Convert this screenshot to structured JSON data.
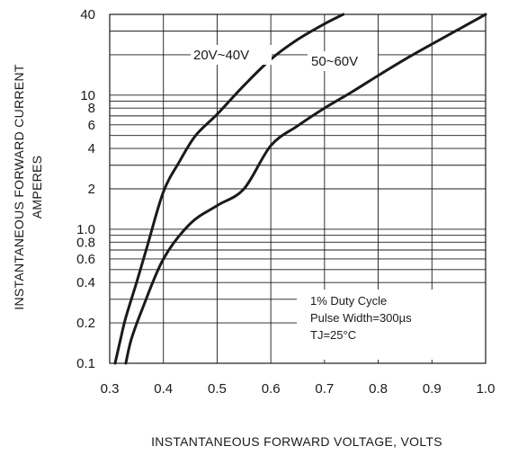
{
  "chart_data": {
    "type": "line",
    "xlabel": "INSTANTANEOUS FORWARD VOLTAGE, VOLTS",
    "ylabel_line1": "INSTANTANEOUS FORWARD CURRENT",
    "ylabel_line2": "AMPERES",
    "xlim": [
      0.3,
      1.0
    ],
    "ylim": [
      0.1,
      40
    ],
    "y_scale": "log",
    "grid": true,
    "x_ticks": [
      0.3,
      0.4,
      0.5,
      0.6,
      0.7,
      0.8,
      0.9,
      1.0
    ],
    "x_tick_labels": [
      "0.3",
      "0.4",
      "0.5",
      "0.6",
      "0.7",
      "0.8",
      "0.9",
      "1.0"
    ],
    "y_ticks": [
      0.1,
      0.2,
      0.4,
      0.6,
      0.8,
      1.0,
      2,
      4,
      6,
      8,
      10,
      40
    ],
    "y_tick_labels": [
      "0.1",
      "0.2",
      "0.4",
      "0.6",
      "0.8",
      "1.0",
      "2",
      "4",
      "6",
      "8",
      "10",
      "40"
    ],
    "y_gridlines": [
      0.1,
      0.2,
      0.3,
      0.4,
      0.5,
      0.6,
      0.7,
      0.8,
      0.9,
      1,
      2,
      3,
      4,
      5,
      6,
      7,
      8,
      9,
      10,
      20,
      30,
      40
    ],
    "series": [
      {
        "name": "20V~40V",
        "x": [
          0.31,
          0.32,
          0.33,
          0.35,
          0.37,
          0.4,
          0.43,
          0.46,
          0.5,
          0.55,
          0.6,
          0.65,
          0.7,
          0.735
        ],
        "y": [
          0.1,
          0.15,
          0.22,
          0.4,
          0.75,
          1.9,
          3.2,
          5.0,
          7.2,
          11.8,
          18.5,
          26.0,
          34.0,
          40.0
        ]
      },
      {
        "name": "50~60V",
        "x": [
          0.33,
          0.34,
          0.36,
          0.4,
          0.45,
          0.5,
          0.55,
          0.6,
          0.65,
          0.7,
          0.75,
          0.8,
          0.85,
          0.9,
          0.95,
          1.0
        ],
        "y": [
          0.1,
          0.15,
          0.25,
          0.6,
          1.1,
          1.5,
          2.0,
          4.2,
          5.9,
          8.0,
          10.5,
          14.0,
          18.5,
          24.0,
          31.0,
          40.0
        ]
      }
    ],
    "series_labels": [
      "20V~40V",
      "50~60V"
    ],
    "annotation_lines": [
      "1% Duty Cycle",
      "Pulse Width=300µs",
      "TJ=25°C"
    ]
  },
  "colors": {
    "line": "#1a1a1a",
    "grid": "#1a1a1a",
    "background": "#ffffff"
  }
}
